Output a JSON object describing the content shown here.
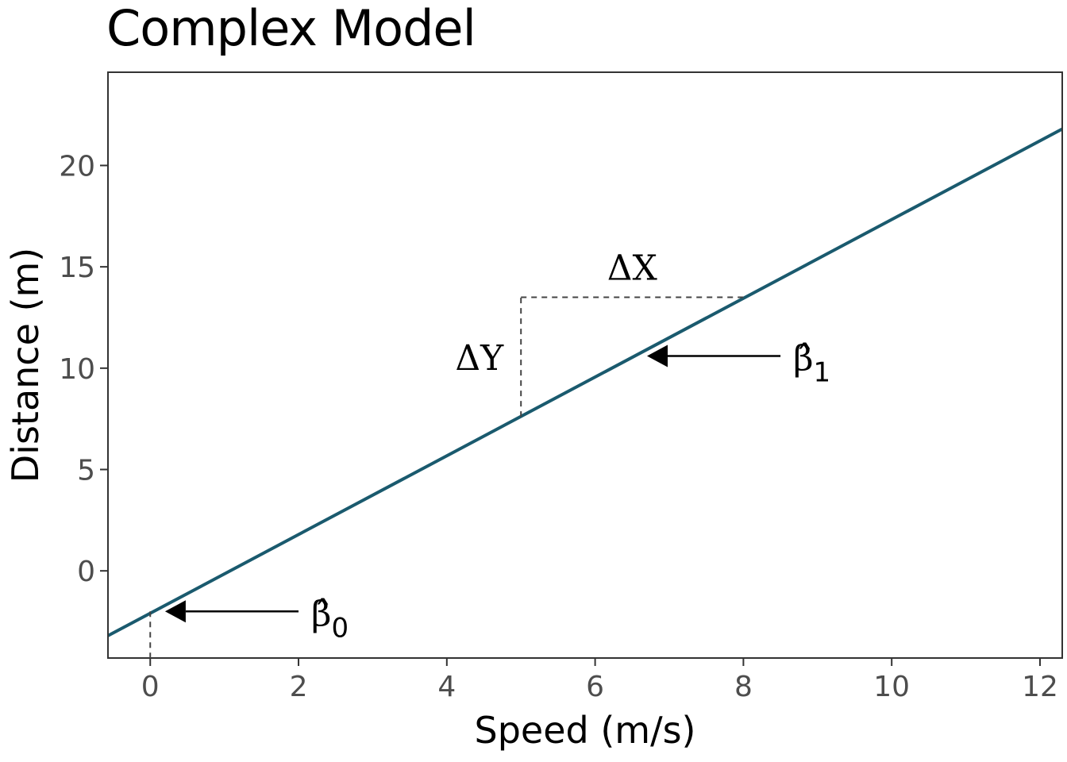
{
  "chart_data": {
    "type": "line",
    "title": "Complex Model",
    "xlabel": "Speed (m/s)",
    "ylabel": "Distance (m)",
    "xlim": [
      -0.57,
      12.3
    ],
    "ylim": [
      -4.3,
      24.6
    ],
    "x_ticks": [
      0,
      2,
      4,
      6,
      8,
      10,
      12
    ],
    "y_ticks": [
      0,
      5,
      10,
      15,
      20
    ],
    "grid": false,
    "line_color": "#1a5a6e",
    "series": [
      {
        "x": [
          -0.57,
          12.3
        ],
        "y": [
          -3.2,
          21.8
        ]
      }
    ],
    "line_equation": {
      "intercept": -2.1,
      "slope": 1.94
    },
    "annotations": {
      "delta_x": {
        "label": "ΔX",
        "x_from": 5,
        "x_to": 8,
        "y": 13.5
      },
      "delta_y": {
        "label": "ΔY",
        "x": 5,
        "y_from": 7.6,
        "y_to": 13.5
      },
      "beta1": {
        "label": "β̂",
        "subscript": "1",
        "arrow_from": [
          8.5,
          10.6
        ],
        "arrow_to": [
          6.7,
          10.6
        ]
      },
      "beta0": {
        "label": "β̂",
        "subscript": "0",
        "arrow_from": [
          2.0,
          -2.0
        ],
        "arrow_to": [
          0.2,
          -2.0
        ],
        "dashed_x": 0
      }
    }
  }
}
